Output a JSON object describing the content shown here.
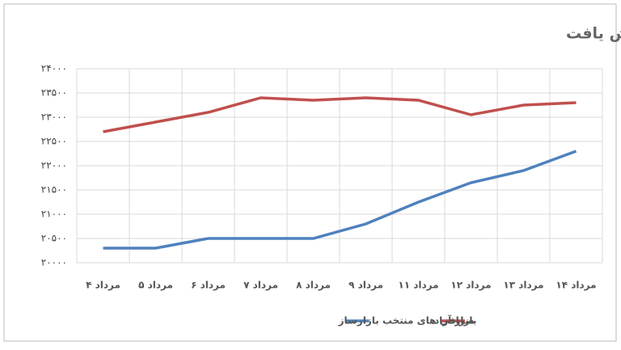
{
  "chart_data": {
    "type": "line",
    "title": "فاصله قیمت صرافی های منتخب با بازار آزاد کاهش یافت",
    "categories": [
      "۴ مرداد",
      "۵ مرداد",
      "۶ مرداد",
      "۷ مرداد",
      "۸ مرداد",
      "۹ مرداد",
      "۱۱ مرداد",
      "۱۲ مرداد",
      "۱۳ مرداد",
      "۱۴ مرداد"
    ],
    "series": [
      {
        "name": "بازار آزاد",
        "color": "#c0504d",
        "values": [
          22700,
          22900,
          23100,
          23400,
          23350,
          23400,
          23350,
          23050,
          23250,
          23300
        ]
      },
      {
        "name": "صرافی های منتخب بازارساز",
        "color": "#4f81bd",
        "values": [
          20300,
          20300,
          20500,
          20500,
          20500,
          20800,
          21250,
          21650,
          21900,
          22300
        ]
      }
    ],
    "ylim": [
      20000,
      24000
    ],
    "yticks": [
      {
        "value": 20000,
        "label": "۲۰۰۰۰"
      },
      {
        "value": 20500,
        "label": "۲۰۵۰۰"
      },
      {
        "value": 21000,
        "label": "۲۱۰۰۰"
      },
      {
        "value": 21500,
        "label": "۲۱۵۰۰"
      },
      {
        "value": 22000,
        "label": "۲۲۰۰۰"
      },
      {
        "value": 22500,
        "label": "۲۲۵۰۰"
      },
      {
        "value": 23000,
        "label": "۲۳۰۰۰"
      },
      {
        "value": 23500,
        "label": "۲۳۵۰۰"
      },
      {
        "value": 24000,
        "label": "۲۴۰۰۰"
      }
    ],
    "grid": true
  }
}
